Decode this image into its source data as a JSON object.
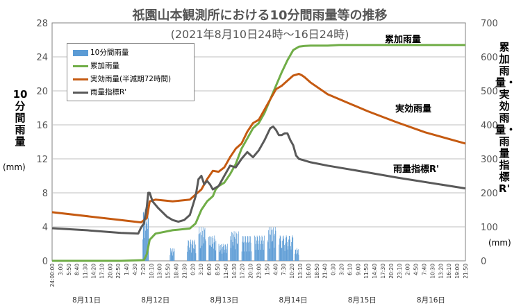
{
  "chart_data": {
    "type": "bar+line",
    "title": "祇園山本観測所における10分間雨量等の推移",
    "subtitle": "(2021年8月10日24時〜16日24時)",
    "y_left": {
      "label": "10分間雨量",
      "unit": "(mm)",
      "ylim": [
        0,
        28
      ],
      "ticks": [
        "0",
        "4",
        "8",
        "12",
        "16",
        "20",
        "24",
        "28"
      ]
    },
    "y_right": {
      "label": "累加雨量・実効雨量・雨量指標R'",
      "unit": "(mm)",
      "ylim": [
        0,
        700
      ],
      "ticks": [
        "0",
        "100",
        "200",
        "300",
        "400",
        "500",
        "600",
        "700"
      ]
    },
    "x_time_ticks": [
      "24:00:00",
      "3:00",
      "5:50",
      "8:40",
      "11:30",
      "14:20",
      "17:10",
      "20:00",
      "22:50",
      "1:40",
      "4:30",
      "7:20",
      "10:10",
      "13:00",
      "15:50",
      "18:40",
      "21:30",
      "0:20",
      "3:10",
      "6:00",
      "8:50",
      "11:40",
      "14:30",
      "17:20",
      "20:10",
      "23:00",
      "1:50",
      "4:40",
      "7:30",
      "10:20",
      "13:10",
      "16:00",
      "18:50",
      "21:40",
      "0:30",
      "3:20",
      "6:10",
      "9:00",
      "11:50",
      "14:40",
      "17:30",
      "20:20",
      "23:10",
      "2:00",
      "4:50",
      "7:40",
      "10:30",
      "13:20",
      "16:10",
      "19:00",
      "21:50"
    ],
    "x_day_labels": [
      "8月11日",
      "8月12日",
      "8月13日",
      "8月14日",
      "8月15日",
      "8月16日"
    ],
    "grid": true,
    "legend_position": "top-left",
    "legend": [
      "10分間雨量",
      "累加雨量",
      "実効雨量(半減期72時間)",
      "雨量指標R'"
    ],
    "annotations": {
      "cumulative": "累加雨量",
      "effective": "実効雨量",
      "index": "雨量指標R'"
    },
    "colors": {
      "rain10": "#5b9bd5",
      "cumulative": "#70ad47",
      "effective": "#c55a11",
      "index": "#595959",
      "grid": "#bfbfbf"
    },
    "series": [
      {
        "name": "累加雨量",
        "axis": "right",
        "x_hours": [
          0,
          24,
          32,
          33,
          34,
          36,
          42,
          48,
          50,
          52,
          54,
          56,
          57,
          58,
          60,
          62,
          64,
          66,
          68,
          70,
          72,
          74,
          76,
          78,
          80,
          82,
          84,
          86,
          88,
          90,
          92,
          94,
          96,
          100,
          110,
          120,
          144
        ],
        "values": [
          0,
          0,
          2,
          20,
          62,
          80,
          90,
          95,
          110,
          150,
          175,
          190,
          210,
          220,
          230,
          255,
          285,
          330,
          360,
          390,
          405,
          435,
          475,
          515,
          555,
          590,
          620,
          630,
          632,
          633,
          633,
          633,
          633,
          635,
          635,
          635,
          635
        ]
      },
      {
        "name": "実効雨量(半減期72時間)",
        "axis": "right",
        "x_hours": [
          0,
          24,
          31,
          33,
          34,
          36,
          42,
          48,
          50,
          52,
          54,
          56,
          58,
          60,
          62,
          64,
          66,
          68,
          70,
          72,
          74,
          76,
          78,
          80,
          82,
          84,
          86,
          87,
          88,
          90,
          96,
          110,
          120,
          130,
          144
        ],
        "values": [
          143,
          120,
          113,
          126,
          175,
          180,
          175,
          180,
          195,
          210,
          240,
          265,
          262,
          275,
          305,
          330,
          345,
          380,
          405,
          415,
          445,
          475,
          505,
          515,
          530,
          545,
          550,
          546,
          540,
          525,
          490,
          440,
          408,
          378,
          345
        ]
      },
      {
        "name": "雨量指標R'",
        "axis": "right",
        "x_hours": [
          0,
          12,
          24,
          30,
          31,
          32,
          33,
          33.5,
          34,
          35,
          37,
          40,
          42,
          44,
          46,
          48,
          50,
          51,
          52,
          53,
          54,
          55,
          56,
          57,
          58,
          60,
          62,
          64,
          66,
          68,
          70,
          72,
          74,
          76,
          77,
          78,
          79,
          80,
          81,
          82,
          83,
          84,
          85,
          86,
          88,
          90,
          96,
          110,
          120,
          144
        ],
        "values": [
          96,
          90,
          82,
          80,
          98,
          110,
          160,
          200,
          200,
          175,
          155,
          130,
          120,
          115,
          120,
          135,
          190,
          240,
          250,
          225,
          235,
          225,
          210,
          215,
          220,
          250,
          280,
          275,
          300,
          320,
          305,
          325,
          355,
          390,
          395,
          385,
          370,
          370,
          375,
          375,
          355,
          340,
          310,
          300,
          295,
          290,
          280,
          260,
          245,
          213
        ]
      }
    ],
    "bars": {
      "name": "10分間雨量",
      "axis": "left",
      "clusters": [
        {
          "start_h": 31.5,
          "end_h": 33.5,
          "peak": 6.2
        },
        {
          "start_h": 41.0,
          "end_h": 42.5,
          "peak": 1.5
        },
        {
          "start_h": 47.0,
          "end_h": 50.0,
          "peak": 2.5
        },
        {
          "start_h": 51.0,
          "end_h": 53.5,
          "peak": 4.0
        },
        {
          "start_h": 54.5,
          "end_h": 57.0,
          "peak": 3.0
        },
        {
          "start_h": 58.0,
          "end_h": 61.0,
          "peak": 2.0
        },
        {
          "start_h": 62.0,
          "end_h": 65.0,
          "peak": 3.5
        },
        {
          "start_h": 66.0,
          "end_h": 69.5,
          "peak": 3.0
        },
        {
          "start_h": 70.5,
          "end_h": 74.0,
          "peak": 3.0
        },
        {
          "start_h": 75.0,
          "end_h": 78.0,
          "peak": 4.0
        },
        {
          "start_h": 79.0,
          "end_h": 84.0,
          "peak": 3.0
        },
        {
          "start_h": 84.5,
          "end_h": 86.0,
          "peak": 1.5
        }
      ]
    }
  }
}
